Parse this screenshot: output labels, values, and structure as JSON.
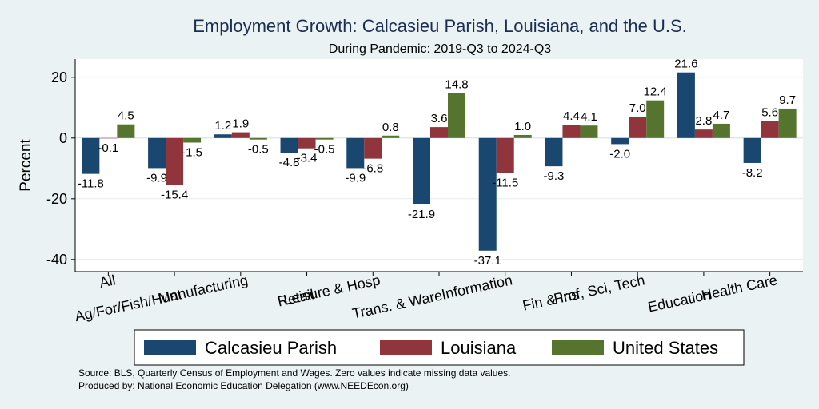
{
  "chart_data": {
    "type": "bar",
    "title": "Employment Growth: Calcasieu Parish, Louisiana, and the U.S.",
    "subtitle": "During Pandemic: 2019-Q3 to 2024-Q3",
    "ylabel": "Percent",
    "ylim": [
      -44,
      26
    ],
    "yticks": [
      -40,
      -20,
      0,
      20
    ],
    "grid": true,
    "legend_position": "bottom",
    "categories": [
      "All",
      "Ag/For/Fish/Hunt",
      "Manufacturing",
      "Retail",
      "Leisure & Hosp",
      "Trans. & Ware.",
      "Information",
      "Fin & Ins",
      "Prof, Sci, Tech",
      "Education",
      "Health Care"
    ],
    "series": [
      {
        "name": "Calcasieu Parish",
        "color": "#1a476f",
        "values": [
          -11.8,
          -9.9,
          1.2,
          -4.8,
          -9.9,
          -21.9,
          -37.1,
          -9.3,
          -2.0,
          21.6,
          -8.2
        ]
      },
      {
        "name": "Louisiana",
        "color": "#90353b",
        "values": [
          -0.1,
          -15.4,
          1.9,
          -3.4,
          -6.8,
          3.6,
          -11.5,
          4.4,
          7.0,
          2.8,
          5.6
        ]
      },
      {
        "name": "United States",
        "color": "#55752f",
        "values": [
          4.5,
          -1.5,
          -0.5,
          -0.5,
          0.8,
          14.8,
          1.0,
          4.1,
          12.4,
          4.7,
          9.7
        ]
      }
    ],
    "value_labels": [
      [
        "-11.8",
        "-9.9",
        "1.2",
        "-4.8",
        "-9.9",
        "-21.9",
        "-37.1",
        "-9.3",
        "-2.0",
        "21.6",
        "-8.2"
      ],
      [
        "-0.1",
        "-15.4",
        "1.9",
        "-3.4",
        "-6.8",
        "3.6",
        "-11.5",
        "4.4",
        "7.0",
        "2.8",
        "5.6"
      ],
      [
        "4.5",
        "-1.5",
        "-0.5",
        "-0.5",
        "0.8",
        "14.8",
        "1.0",
        "4.1",
        "12.4",
        "4.7",
        "9.7"
      ]
    ]
  },
  "footer": {
    "source": "Source: BLS, Quarterly Census of Employment and Wages. Zero values indicate missing data values.",
    "produced": "Produced by: National Economic Education Delegation (www.NEEDEcon.org)"
  }
}
